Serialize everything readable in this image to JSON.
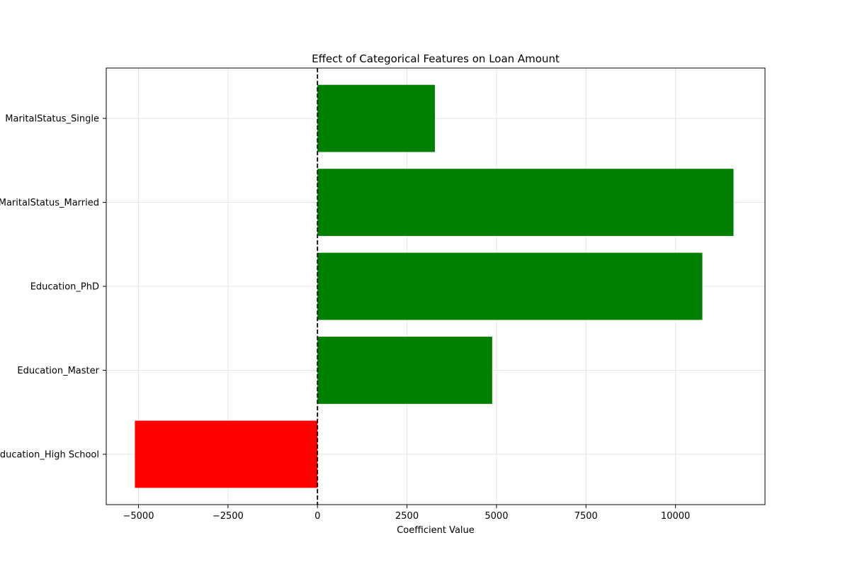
{
  "chart_data": {
    "type": "bar",
    "orientation": "horizontal",
    "title": "Effect of Categorical Features on Loan Amount",
    "xlabel": "Coefficient Value",
    "ylabel": "",
    "categories": [
      "Education_High School",
      "Education_Master",
      "Education_PhD",
      "MaritalStatus_Married",
      "MaritalStatus_Single"
    ],
    "values": [
      -5100,
      4880,
      10750,
      11620,
      3280
    ],
    "xlim": [
      -5900,
      12500
    ],
    "xticks": [
      -5000,
      -2500,
      0,
      2500,
      5000,
      7500,
      10000
    ],
    "xtick_labels": [
      "−5000",
      "−2500",
      "0",
      "2500",
      "5000",
      "7500",
      "10000"
    ],
    "reference_line": {
      "x": 0,
      "style": "dashed",
      "color": "#000000"
    },
    "colors": {
      "positive": "#008000",
      "negative": "#ff0000"
    },
    "grid": true
  }
}
